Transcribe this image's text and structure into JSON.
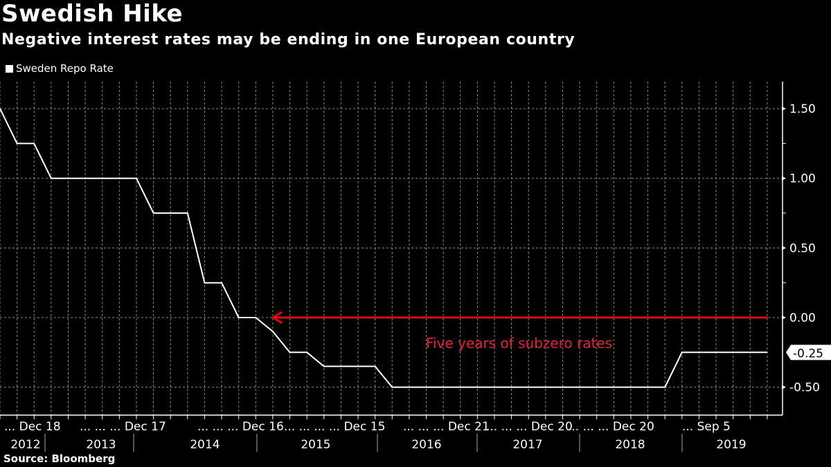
{
  "header": {
    "title": "Swedish Hike",
    "subtitle": "Negative interest rates may be ending in one European country"
  },
  "legend": {
    "label": "Sweden Repo Rate",
    "color": "#ffffff"
  },
  "footer": {
    "source": "Source: Bloomberg"
  },
  "chart_data": {
    "type": "line",
    "title": "Swedish Hike",
    "subtitle": "Negative interest rates may be ending in one European country",
    "xlabel": "",
    "ylabel": "",
    "ylim": [
      -0.75,
      1.7
    ],
    "grid": true,
    "legend_position": "top-left",
    "y_ticks": [
      1.5,
      1.0,
      0.5,
      0.0,
      -0.5
    ],
    "y_tick_labels": [
      "1.50",
      "1.00",
      "0.50",
      "0.00",
      "-0.50"
    ],
    "last_value_label": "-0.25",
    "x_period_count": 46,
    "x_tick_labels": [
      "... Dec 18",
      "... ... ... Dec 17",
      "... ... ... Dec 16",
      "... ... ... ... Dec 15",
      "... ... ... Dec 21",
      "... ... ... Dec 20",
      "... ... ... Dec 20",
      "... Sep 5"
    ],
    "x_year_labels": [
      "2012",
      "2013",
      "2014",
      "2015",
      "2016",
      "2017",
      "2018",
      "2019"
    ],
    "series": [
      {
        "name": "Sweden Repo Rate",
        "color": "#ffffff",
        "points": [
          {
            "i": 0,
            "v": 1.5
          },
          {
            "i": 1,
            "v": 1.25
          },
          {
            "i": 2,
            "v": 1.25
          },
          {
            "i": 3,
            "v": 1.0
          },
          {
            "i": 8,
            "v": 1.0
          },
          {
            "i": 9,
            "v": 0.75
          },
          {
            "i": 11,
            "v": 0.75
          },
          {
            "i": 12,
            "v": 0.25
          },
          {
            "i": 13,
            "v": 0.25
          },
          {
            "i": 14,
            "v": 0.0
          },
          {
            "i": 15,
            "v": 0.0
          },
          {
            "i": 16,
            "v": -0.1
          },
          {
            "i": 17,
            "v": -0.25
          },
          {
            "i": 18,
            "v": -0.25
          },
          {
            "i": 19,
            "v": -0.35
          },
          {
            "i": 22,
            "v": -0.35
          },
          {
            "i": 23,
            "v": -0.5
          },
          {
            "i": 39,
            "v": -0.5
          },
          {
            "i": 40,
            "v": -0.25
          },
          {
            "i": 45,
            "v": -0.25
          }
        ]
      }
    ],
    "annotations": [
      {
        "type": "arrow",
        "value": 0.0,
        "from_index": 45,
        "to_index": 16,
        "color": "#e30613"
      },
      {
        "type": "text",
        "text": "Five years of subzero rates",
        "color": "#e8213d"
      }
    ]
  }
}
